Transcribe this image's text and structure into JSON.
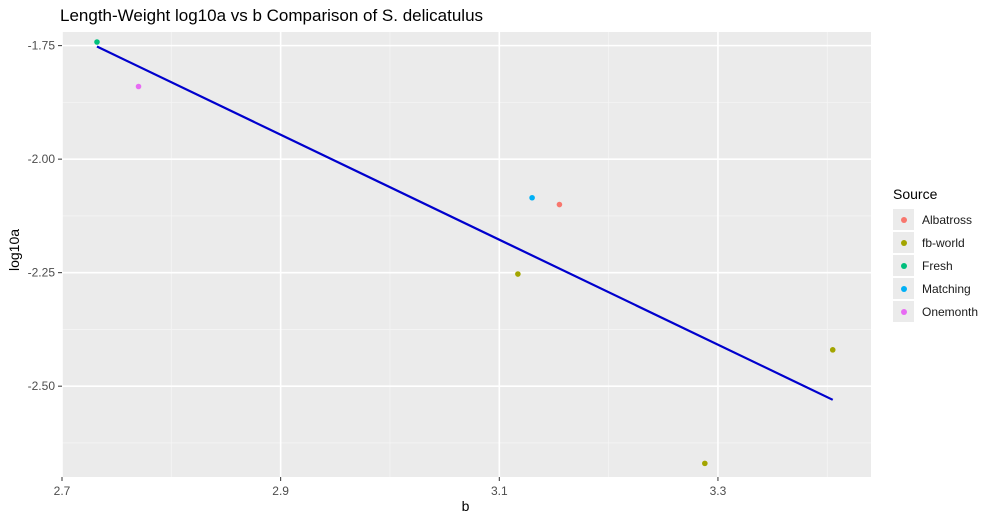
{
  "chart_data": {
    "type": "scatter",
    "title": "Length-Weight log10a vs b Comparison of S. delicatulus",
    "xlabel": "b",
    "ylabel": "log10a",
    "xlim": [
      2.7,
      3.44
    ],
    "ylim": [
      -2.7,
      -1.72
    ],
    "x_ticks": [
      2.7,
      2.9,
      3.1,
      3.3
    ],
    "x_tick_labels": [
      "2.7",
      "2.9",
      "3.1",
      "3.3"
    ],
    "y_ticks": [
      -1.75,
      -2.0,
      -2.25,
      -2.5
    ],
    "y_tick_labels": [
      "-1.75",
      "-2.00",
      "-2.25",
      "-2.50"
    ],
    "grid": true,
    "legend": {
      "title": "Source",
      "position": "right",
      "entries": [
        "Albatross",
        "fb-world",
        "Fresh",
        "Matching",
        "Onemonth"
      ]
    },
    "series": [
      {
        "name": "Albatross",
        "color": "#F8766D",
        "points": [
          {
            "x": 3.155,
            "y": -2.1
          }
        ]
      },
      {
        "name": "fb-world",
        "color": "#A3A500",
        "points": [
          {
            "x": 3.117,
            "y": -2.253
          },
          {
            "x": 3.288,
            "y": -2.67
          },
          {
            "x": 3.405,
            "y": -2.42
          }
        ]
      },
      {
        "name": "Fresh",
        "color": "#00BF7D",
        "points": [
          {
            "x": 2.732,
            "y": -1.742
          }
        ]
      },
      {
        "name": "Matching",
        "color": "#00B0F6",
        "points": [
          {
            "x": 3.13,
            "y": -2.085
          }
        ]
      },
      {
        "name": "Onemonth",
        "color": "#E76BF3",
        "points": [
          {
            "x": 2.77,
            "y": -1.84
          }
        ]
      }
    ],
    "fit_line": {
      "color": "#0000CD",
      "x": [
        2.732,
        3.405
      ],
      "y": [
        -1.752,
        -2.53
      ]
    }
  }
}
